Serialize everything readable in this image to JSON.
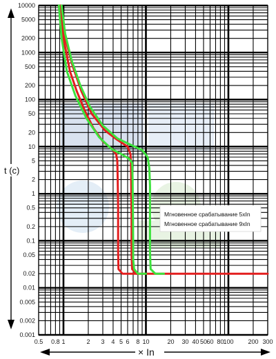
{
  "chart_data": {
    "type": "line",
    "xscale": "log",
    "yscale": "log",
    "xlim": [
      0.5,
      300
    ],
    "ylim": [
      0.001,
      10000
    ],
    "xlabel": "× In",
    "ylabel": "t (c)",
    "grid": true,
    "x_ticks": [
      "0.5",
      "0.8",
      "1",
      "2",
      "3",
      "4",
      "5",
      "6",
      "8",
      "10",
      "20",
      "30",
      "40",
      "50",
      "60",
      "80",
      "100",
      "200",
      "300"
    ],
    "y_ticks": [
      "10000",
      "5000",
      "2000",
      "1000",
      "500",
      "200",
      "100",
      "50",
      "20",
      "10",
      "5",
      "2",
      "1",
      "0.5",
      "0.2",
      "0.1",
      "0.05",
      "0.02",
      "0.01",
      "0.005",
      "0.002",
      "0.001"
    ],
    "legend": [
      {
        "label": "Мгновенное срабатывание 5xIn",
        "color": "#e31e1e"
      },
      {
        "label": "Мгновенное срабатывание 9xIn",
        "color": "#3de23d"
      }
    ],
    "legend_position": "center-right",
    "series": [
      {
        "color": "#e31e1e",
        "width": 3,
        "points": [
          [
            0.93,
            10000
          ],
          [
            1.0,
            2000
          ],
          [
            1.2,
            400
          ],
          [
            1.45,
            150
          ],
          [
            1.8,
            60
          ],
          [
            2.3,
            25
          ],
          [
            3.0,
            13
          ],
          [
            4.0,
            8.5
          ],
          [
            4.35,
            7
          ],
          [
            4.5,
            5
          ],
          [
            4.55,
            2
          ],
          [
            4.6,
            0.5
          ],
          [
            4.6,
            0.06
          ],
          [
            4.65,
            0.025
          ],
          [
            5.2,
            0.02
          ],
          [
            300,
            0.02
          ]
        ]
      },
      {
        "color": "#e31e1e",
        "width": 3,
        "points": [
          [
            0.93,
            10000
          ],
          [
            1.05,
            2000
          ],
          [
            1.3,
            500
          ],
          [
            1.65,
            150
          ],
          [
            2.2,
            50
          ],
          [
            3.2,
            22
          ],
          [
            4.5,
            14
          ],
          [
            6.0,
            10
          ],
          [
            6.5,
            7
          ],
          [
            6.6,
            4
          ],
          [
            6.65,
            1
          ],
          [
            6.7,
            0.3
          ],
          [
            6.7,
            0.05
          ],
          [
            6.8,
            0.025
          ],
          [
            7.6,
            0.02
          ],
          [
            9.5,
            0.02
          ]
        ]
      },
      {
        "color": "#3de23d",
        "width": 3,
        "points": [
          [
            0.88,
            10000
          ],
          [
            0.95,
            2000
          ],
          [
            1.1,
            400
          ],
          [
            1.4,
            120
          ],
          [
            1.9,
            40
          ],
          [
            2.7,
            16
          ],
          [
            3.8,
            9
          ],
          [
            5.0,
            7
          ],
          [
            6.3,
            5.5
          ],
          [
            6.8,
            4.5
          ],
          [
            6.9,
            2
          ],
          [
            6.95,
            0.5
          ],
          [
            7.0,
            0.1
          ],
          [
            7.0,
            0.04
          ],
          [
            7.2,
            0.025
          ],
          [
            8.0,
            0.02
          ],
          [
            10,
            0.02
          ]
        ]
      },
      {
        "color": "#3de23d",
        "width": 3,
        "points": [
          [
            0.95,
            10000
          ],
          [
            1.05,
            2500
          ],
          [
            1.25,
            700
          ],
          [
            1.6,
            200
          ],
          [
            2.1,
            70
          ],
          [
            3.0,
            28
          ],
          [
            4.5,
            15
          ],
          [
            6.5,
            11
          ],
          [
            9.0,
            8.5
          ],
          [
            10.5,
            6
          ],
          [
            11,
            3.5
          ],
          [
            11.2,
            1.5
          ],
          [
            11.2,
            0.3
          ],
          [
            11.2,
            0.06
          ],
          [
            11.4,
            0.025
          ],
          [
            13,
            0.02
          ],
          [
            16.5,
            0.02
          ]
        ]
      }
    ]
  }
}
